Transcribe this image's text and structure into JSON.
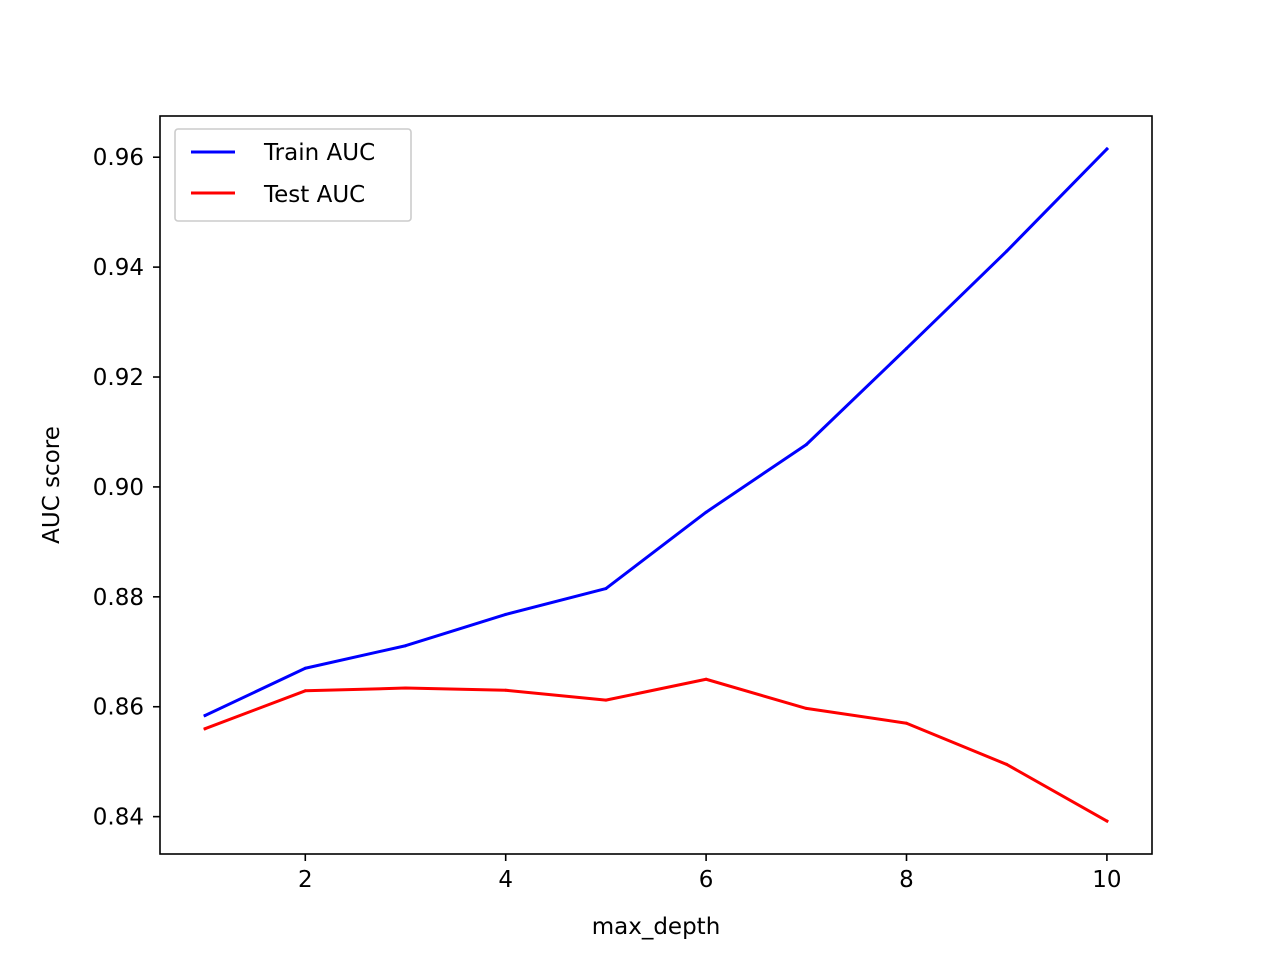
{
  "chart_data": {
    "type": "line",
    "title": "",
    "xlabel": "max_depth",
    "ylabel": "AUC score",
    "x": [
      1,
      2,
      3,
      4,
      5,
      6,
      7,
      8,
      9,
      10
    ],
    "xlim": [
      0.55,
      10.45
    ],
    "ylim": [
      0.8332,
      0.9675
    ],
    "xticks": [
      2,
      4,
      6,
      8,
      10
    ],
    "xtick_labels": [
      "2",
      "4",
      "6",
      "8",
      "10"
    ],
    "yticks": [
      0.84,
      0.86,
      0.88,
      0.9,
      0.92,
      0.94,
      0.96
    ],
    "ytick_labels": [
      "0.84",
      "0.86",
      "0.88",
      "0.90",
      "0.92",
      "0.94",
      "0.96"
    ],
    "grid": false,
    "legend_position": "top-left",
    "series": [
      {
        "name": "Train AUC",
        "color": "#0000ff",
        "values": [
          0.8584,
          0.867,
          0.8711,
          0.8768,
          0.8815,
          0.8954,
          0.9077,
          0.9252,
          0.9429,
          0.9615
        ]
      },
      {
        "name": "Test AUC",
        "color": "#ff0000",
        "values": [
          0.856,
          0.8629,
          0.8634,
          0.863,
          0.8612,
          0.865,
          0.8597,
          0.857,
          0.8495,
          0.8392
        ]
      }
    ]
  }
}
